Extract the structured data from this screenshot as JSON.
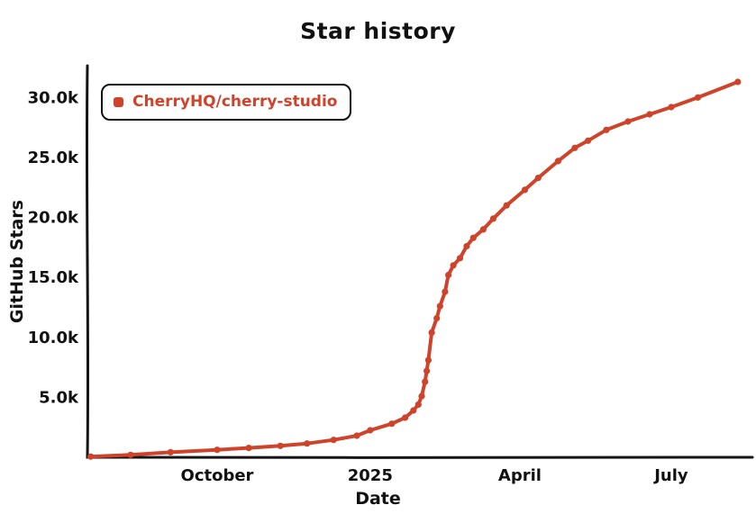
{
  "page": {
    "background": "#ffffff",
    "axis_color": "#141414"
  },
  "chart_data": {
    "type": "line",
    "title": "Star history",
    "xlabel": "Date",
    "ylabel": "GitHub Stars",
    "grid": false,
    "legend_position": "top-left",
    "x_domain": [
      "2024-07-15",
      "2025-08-15"
    ],
    "ylim": [
      0,
      32500
    ],
    "y_ticks": [
      {
        "value": 5000,
        "label": "5.0k"
      },
      {
        "value": 10000,
        "label": "10.0k"
      },
      {
        "value": 15000,
        "label": "15.0k"
      },
      {
        "value": 20000,
        "label": "20.0k"
      },
      {
        "value": 25000,
        "label": "25.0k"
      },
      {
        "value": 30000,
        "label": "30.0k"
      }
    ],
    "x_ticks": [
      {
        "date": "2024-10-01",
        "label": "October"
      },
      {
        "date": "2025-01-01",
        "label": "2025"
      },
      {
        "date": "2025-04-01",
        "label": "April"
      },
      {
        "date": "2025-07-01",
        "label": "July"
      }
    ],
    "series": [
      {
        "name": "CherryHQ/cherry-studio",
        "color": "#d0432b",
        "points": [
          [
            "2024-07-17",
            60
          ],
          [
            "2024-08-10",
            200
          ],
          [
            "2024-09-03",
            420
          ],
          [
            "2024-10-01",
            620
          ],
          [
            "2024-10-20",
            780
          ],
          [
            "2024-11-08",
            950
          ],
          [
            "2024-11-24",
            1150
          ],
          [
            "2024-12-10",
            1450
          ],
          [
            "2024-12-24",
            1800
          ],
          [
            "2025-01-01",
            2250
          ],
          [
            "2025-01-14",
            2800
          ],
          [
            "2025-01-22",
            3300
          ],
          [
            "2025-01-27",
            3900
          ],
          [
            "2025-01-30",
            4400
          ],
          [
            "2025-02-01",
            5100
          ],
          [
            "2025-02-03",
            6300
          ],
          [
            "2025-02-04",
            7200
          ],
          [
            "2025-02-05",
            8100
          ],
          [
            "2025-02-07",
            10400
          ],
          [
            "2025-02-10",
            11600
          ],
          [
            "2025-02-12",
            12600
          ],
          [
            "2025-02-15",
            13800
          ],
          [
            "2025-02-17",
            15200
          ],
          [
            "2025-02-20",
            16000
          ],
          [
            "2025-02-24",
            16600
          ],
          [
            "2025-02-28",
            17600
          ],
          [
            "2025-03-04",
            18300
          ],
          [
            "2025-03-10",
            19000
          ],
          [
            "2025-03-16",
            19900
          ],
          [
            "2025-03-24",
            21000
          ],
          [
            "2025-04-04",
            22300
          ],
          [
            "2025-04-12",
            23300
          ],
          [
            "2025-04-24",
            24700
          ],
          [
            "2025-05-04",
            25800
          ],
          [
            "2025-05-12",
            26400
          ],
          [
            "2025-05-23",
            27300
          ],
          [
            "2025-06-05",
            28000
          ],
          [
            "2025-06-18",
            28600
          ],
          [
            "2025-07-01",
            29200
          ],
          [
            "2025-07-17",
            30000
          ],
          [
            "2025-08-10",
            31300
          ]
        ]
      }
    ]
  }
}
